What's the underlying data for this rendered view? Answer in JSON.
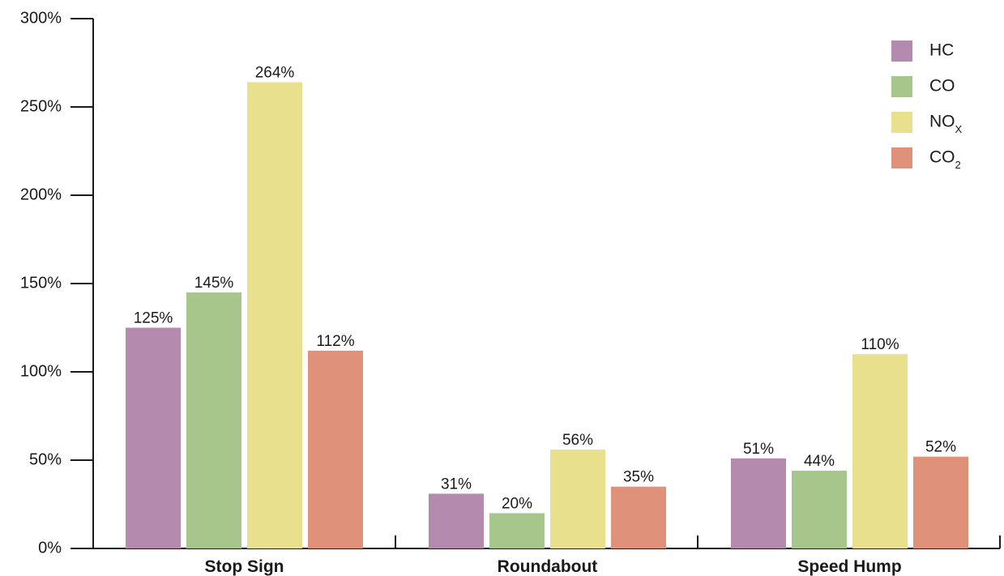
{
  "chart_data": {
    "type": "bar",
    "categories": [
      "Stop Sign",
      "Roundabout",
      "Speed Hump"
    ],
    "series": [
      {
        "name": "HC",
        "name_main": "HC",
        "name_sub": "",
        "color": "#b48aae",
        "values": [
          125,
          31,
          51
        ],
        "labels": [
          "125%",
          "31%",
          "51%"
        ]
      },
      {
        "name": "CO",
        "name_main": "CO",
        "name_sub": "",
        "color": "#a6c68c",
        "values": [
          145,
          20,
          44
        ],
        "labels": [
          "145%",
          "20%",
          "44%"
        ]
      },
      {
        "name": "NOX",
        "name_main": "NO",
        "name_sub": "X",
        "color": "#e9e08d",
        "values": [
          264,
          56,
          110
        ],
        "labels": [
          "264%",
          "56%",
          "110%"
        ]
      },
      {
        "name": "CO2",
        "name_main": "CO",
        "name_sub": "2",
        "color": "#e0917a",
        "values": [
          112,
          35,
          52
        ],
        "labels": [
          "112%",
          "35%",
          "52%"
        ]
      }
    ],
    "ylim": [
      0,
      300
    ],
    "yticks": [
      0,
      50,
      100,
      150,
      200,
      250,
      300
    ],
    "ytick_labels": [
      "0%",
      "50%",
      "100%",
      "150%",
      "200%",
      "250%",
      "300%"
    ],
    "legend_position": "top-right",
    "grid": false
  }
}
